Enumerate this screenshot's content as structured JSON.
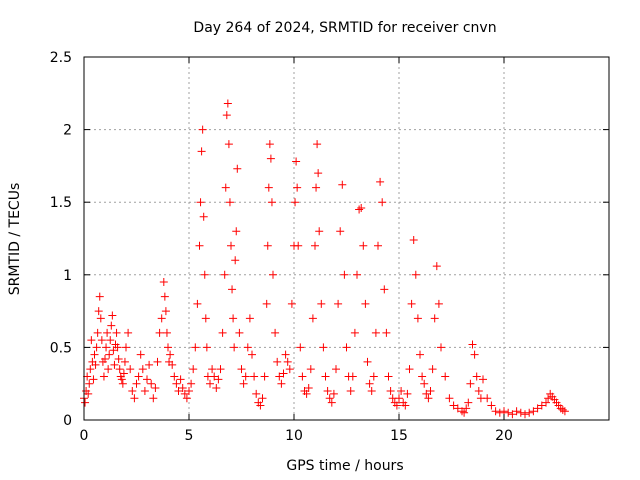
{
  "chart_data": {
    "type": "scatter",
    "title": "Day 264 of 2024, SRMTID for receiver cnvn",
    "xlabel": "GPS time / hours",
    "ylabel": "SRMTID / TECUs",
    "xlim": [
      0,
      25
    ],
    "ylim": [
      0,
      2.5
    ],
    "xticks": [
      0,
      5,
      10,
      15,
      20
    ],
    "xtick_labels": [
      "0",
      "5",
      "10",
      "15",
      "20"
    ],
    "yticks": [
      0,
      0.5,
      1,
      1.5,
      2,
      2.5
    ],
    "ytick_labels": [
      "0",
      "0.5",
      "1",
      "1.5",
      "2",
      "2.5"
    ],
    "grid": true,
    "marker": "+",
    "series": [
      {
        "name": "SRMTID",
        "color": "#ff0000",
        "x": [
          0.0,
          0.05,
          0.1,
          0.15,
          0.2,
          0.25,
          0.3,
          0.35,
          0.4,
          0.45,
          0.5,
          0.55,
          0.6,
          0.65,
          0.7,
          0.75,
          0.8,
          0.85,
          0.9,
          0.95,
          1.0,
          1.05,
          1.1,
          1.15,
          1.2,
          1.25,
          1.3,
          1.35,
          1.4,
          1.45,
          1.5,
          1.55,
          1.6,
          1.65,
          1.7,
          1.75,
          1.8,
          1.85,
          1.9,
          1.95,
          2.0,
          2.1,
          2.2,
          2.3,
          2.4,
          2.5,
          2.6,
          2.7,
          2.8,
          2.9,
          3.0,
          3.1,
          3.2,
          3.3,
          3.4,
          3.5,
          3.6,
          3.7,
          3.8,
          3.85,
          3.9,
          3.95,
          4.0,
          4.05,
          4.1,
          4.2,
          4.3,
          4.4,
          4.5,
          4.6,
          4.7,
          4.8,
          4.9,
          5.0,
          5.1,
          5.2,
          5.3,
          5.4,
          5.5,
          5.55,
          5.6,
          5.65,
          5.7,
          5.75,
          5.8,
          5.85,
          5.9,
          6.0,
          6.1,
          6.2,
          6.3,
          6.4,
          6.5,
          6.6,
          6.7,
          6.75,
          6.8,
          6.85,
          6.9,
          6.95,
          7.0,
          7.05,
          7.1,
          7.15,
          7.2,
          7.25,
          7.3,
          7.4,
          7.5,
          7.6,
          7.7,
          7.8,
          7.9,
          8.0,
          8.1,
          8.2,
          8.3,
          8.4,
          8.5,
          8.6,
          8.7,
          8.75,
          8.8,
          8.85,
          8.9,
          8.95,
          9.0,
          9.1,
          9.2,
          9.3,
          9.4,
          9.5,
          9.6,
          9.7,
          9.8,
          9.9,
          10.0,
          10.05,
          10.1,
          10.15,
          10.2,
          10.3,
          10.4,
          10.5,
          10.6,
          10.7,
          10.8,
          10.9,
          11.0,
          11.05,
          11.1,
          11.15,
          11.2,
          11.3,
          11.4,
          11.5,
          11.6,
          11.7,
          11.8,
          11.9,
          12.0,
          12.1,
          12.2,
          12.3,
          12.4,
          12.5,
          12.6,
          12.7,
          12.8,
          12.9,
          13.0,
          13.1,
          13.2,
          13.3,
          13.4,
          13.5,
          13.6,
          13.7,
          13.8,
          13.9,
          14.0,
          14.1,
          14.2,
          14.3,
          14.4,
          14.5,
          14.6,
          14.7,
          14.8,
          14.9,
          15.0,
          15.1,
          15.2,
          15.3,
          15.4,
          15.5,
          15.6,
          15.7,
          15.8,
          15.9,
          16.0,
          16.1,
          16.2,
          16.3,
          16.4,
          16.5,
          16.6,
          16.7,
          16.8,
          16.9,
          17.0,
          17.2,
          17.4,
          17.6,
          17.8,
          18.0,
          18.1,
          18.2,
          18.3,
          18.4,
          18.5,
          18.6,
          18.7,
          18.8,
          18.9,
          19.0,
          19.2,
          19.4,
          19.6,
          19.8,
          20.0,
          20.2,
          20.4,
          20.6,
          20.8,
          21.0,
          21.2,
          21.4,
          21.6,
          21.8,
          22.0,
          22.1,
          22.2,
          22.3,
          22.4,
          22.5,
          22.6,
          22.7,
          22.8,
          22.9
        ],
        "y": [
          0.15,
          0.12,
          0.2,
          0.3,
          0.18,
          0.25,
          0.35,
          0.55,
          0.4,
          0.28,
          0.45,
          0.38,
          0.5,
          0.6,
          0.75,
          0.85,
          0.7,
          0.55,
          0.4,
          0.3,
          0.42,
          0.5,
          0.6,
          0.35,
          0.45,
          0.55,
          0.65,
          0.72,
          0.48,
          0.38,
          0.52,
          0.6,
          0.5,
          0.42,
          0.35,
          0.3,
          0.28,
          0.25,
          0.32,
          0.4,
          0.5,
          0.6,
          0.35,
          0.2,
          0.15,
          0.25,
          0.3,
          0.45,
          0.35,
          0.2,
          0.28,
          0.38,
          0.25,
          0.15,
          0.22,
          0.4,
          0.6,
          0.7,
          0.95,
          0.85,
          0.75,
          0.6,
          0.5,
          0.4,
          0.45,
          0.38,
          0.3,
          0.25,
          0.2,
          0.28,
          0.22,
          0.18,
          0.15,
          0.2,
          0.25,
          0.35,
          0.5,
          0.8,
          1.2,
          1.5,
          1.85,
          2.0,
          1.4,
          1.0,
          0.7,
          0.5,
          0.3,
          0.25,
          0.35,
          0.3,
          0.22,
          0.28,
          0.35,
          0.6,
          1.0,
          1.6,
          2.1,
          2.18,
          1.9,
          1.5,
          1.2,
          0.9,
          0.7,
          0.5,
          1.1,
          1.3,
          1.73,
          0.6,
          0.35,
          0.25,
          0.3,
          0.5,
          0.7,
          0.45,
          0.3,
          0.18,
          0.12,
          0.1,
          0.15,
          0.3,
          0.8,
          1.2,
          1.6,
          1.9,
          1.8,
          1.5,
          1.0,
          0.6,
          0.4,
          0.3,
          0.25,
          0.32,
          0.45,
          0.4,
          0.35,
          0.8,
          1.2,
          1.5,
          1.78,
          1.6,
          1.2,
          0.5,
          0.3,
          0.2,
          0.18,
          0.22,
          0.35,
          0.7,
          1.2,
          1.6,
          1.9,
          1.7,
          1.3,
          0.8,
          0.5,
          0.3,
          0.2,
          0.15,
          0.12,
          0.18,
          0.35,
          0.8,
          1.3,
          1.62,
          1.0,
          0.5,
          0.3,
          0.2,
          0.3,
          0.6,
          1.0,
          1.45,
          1.46,
          1.2,
          0.8,
          0.4,
          0.25,
          0.2,
          0.3,
          0.6,
          1.2,
          1.64,
          1.5,
          0.9,
          0.6,
          0.3,
          0.2,
          0.15,
          0.12,
          0.1,
          0.15,
          0.2,
          0.12,
          0.1,
          0.18,
          0.35,
          0.8,
          1.24,
          1.0,
          0.7,
          0.45,
          0.3,
          0.25,
          0.18,
          0.15,
          0.2,
          0.35,
          0.7,
          1.06,
          0.8,
          0.5,
          0.3,
          0.15,
          0.1,
          0.08,
          0.06,
          0.05,
          0.08,
          0.12,
          0.25,
          0.52,
          0.45,
          0.3,
          0.2,
          0.15,
          0.28,
          0.15,
          0.1,
          0.06,
          0.05,
          0.06,
          0.05,
          0.04,
          0.06,
          0.05,
          0.04,
          0.05,
          0.06,
          0.08,
          0.1,
          0.12,
          0.15,
          0.18,
          0.16,
          0.14,
          0.12,
          0.1,
          0.08,
          0.07,
          0.06
        ]
      }
    ]
  }
}
